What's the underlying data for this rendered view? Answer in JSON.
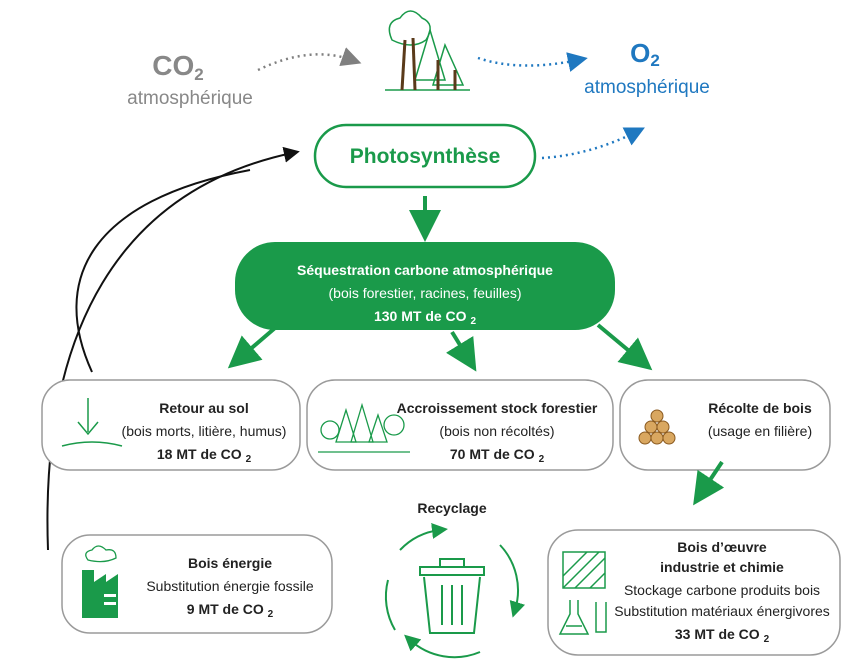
{
  "co2": {
    "symbol": "CO",
    "sub": "2",
    "label": "atmosphérique"
  },
  "o2": {
    "symbol": "O",
    "sub": "2",
    "label": "atmosphérique"
  },
  "photosynthesis": "Photosynthèse",
  "sequestration": {
    "title": "Séquestration carbone atmosphérique",
    "detail": "(bois forestier, racines, feuilles)",
    "amount": "130 MT de CO",
    "sub": "2"
  },
  "ground": {
    "title": "Retour au sol",
    "detail": "(bois morts, litière, humus)",
    "amount": "18 MT de CO",
    "sub": "2"
  },
  "stock": {
    "title": "Accroissement stock forestier",
    "detail": "(bois non récoltés)",
    "amount": "70 MT de CO",
    "sub": "2"
  },
  "harvest": {
    "title": "Récolte de bois",
    "detail": "(usage en filière)"
  },
  "recycling": "Recyclage",
  "energy": {
    "title": "Bois énergie",
    "detail": "Substitution énergie fossile",
    "amount": "9 MT de CO",
    "sub": "2"
  },
  "timber": {
    "title1": "Bois d’œuvre",
    "title2": "industrie et chimie",
    "detail1": "Stockage carbone produits bois",
    "detail2": "Substitution matériaux énergivores",
    "amount": "33 MT de CO",
    "sub": "2"
  }
}
